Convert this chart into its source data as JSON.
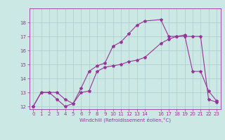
{
  "xlabel": "Windchill (Refroidissement éolien,°C)",
  "bg_color": "#cce8e4",
  "line_color": "#993399",
  "grid_color": "#aacccc",
  "xmin": -0.5,
  "xmax": 23.5,
  "ymin": 11.8,
  "ymax": 19.0,
  "line1_x": [
    0,
    1,
    2,
    3,
    4,
    5,
    6,
    7,
    8,
    9,
    10,
    11,
    12,
    13,
    14,
    16,
    17,
    18,
    19,
    20,
    21,
    22,
    23
  ],
  "line1_y": [
    12.0,
    13.0,
    13.0,
    13.0,
    12.5,
    12.2,
    13.3,
    14.5,
    14.9,
    15.1,
    16.3,
    16.6,
    17.2,
    17.8,
    18.1,
    18.2,
    17.0,
    17.0,
    17.0,
    17.0,
    17.0,
    12.5,
    12.3
  ],
  "line2_x": [
    0,
    1,
    2,
    3,
    4,
    5,
    6,
    7,
    8,
    9,
    10,
    11,
    12,
    13,
    14,
    16,
    17,
    18,
    19,
    20,
    21,
    22,
    23
  ],
  "line2_y": [
    12.0,
    13.0,
    13.0,
    12.5,
    12.0,
    12.2,
    13.0,
    13.1,
    14.5,
    14.8,
    14.9,
    15.0,
    15.2,
    15.3,
    15.5,
    16.5,
    16.8,
    17.0,
    17.1,
    14.5,
    14.5,
    13.1,
    12.4
  ],
  "yticks": [
    12,
    13,
    14,
    15,
    16,
    17,
    18
  ],
  "xticks": [
    0,
    1,
    2,
    3,
    4,
    5,
    6,
    7,
    8,
    9,
    10,
    11,
    12,
    13,
    14,
    16,
    17,
    18,
    19,
    20,
    21,
    22,
    23
  ]
}
